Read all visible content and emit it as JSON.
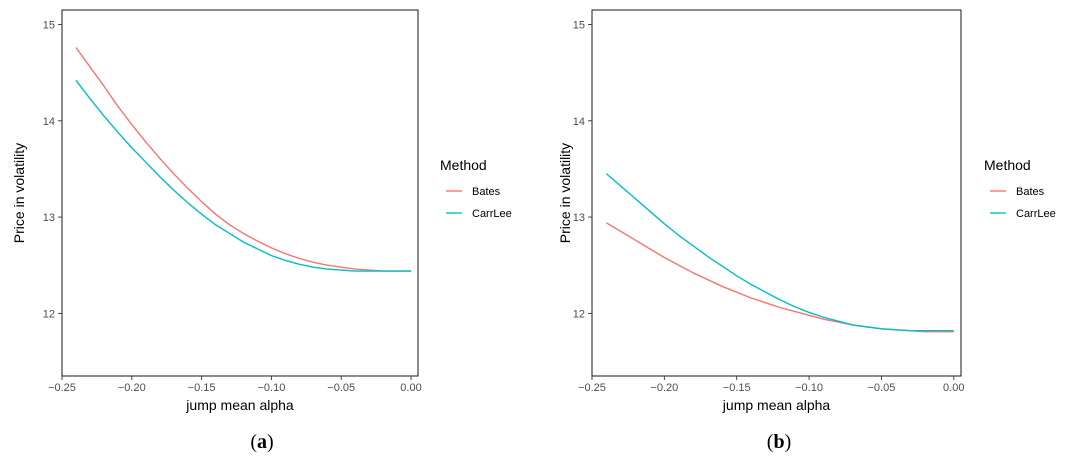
{
  "chart_data": [
    {
      "type": "line",
      "caption_open": "(",
      "caption_letter": "a",
      "caption_close": ")",
      "xlabel": "jump mean alpha",
      "ylabel": "Price in volatility",
      "xlim": [
        -0.25,
        0.005
      ],
      "ylim": [
        11.35,
        15.15
      ],
      "x_ticks": [
        -0.25,
        -0.2,
        -0.15,
        -0.1,
        -0.05,
        0.0
      ],
      "x_tick_labels": [
        "−0.25",
        "−0.20",
        "−0.15",
        "−0.10",
        "−0.05",
        "0.00"
      ],
      "y_ticks": [
        12,
        13,
        14,
        15
      ],
      "y_tick_labels": [
        "12",
        "13",
        "14",
        "15"
      ],
      "grid": false,
      "legend": {
        "title": "Method",
        "placement": "right"
      },
      "x": [
        -0.24,
        -0.23,
        -0.22,
        -0.21,
        -0.2,
        -0.19,
        -0.18,
        -0.17,
        -0.16,
        -0.15,
        -0.14,
        -0.13,
        -0.12,
        -0.11,
        -0.1,
        -0.09,
        -0.08,
        -0.07,
        -0.06,
        -0.05,
        -0.04,
        -0.03,
        -0.02,
        -0.01,
        0.0
      ],
      "series": [
        {
          "name": "Bates",
          "color": "#F8766D",
          "values": [
            14.76,
            14.56,
            14.36,
            14.15,
            13.96,
            13.78,
            13.61,
            13.45,
            13.3,
            13.16,
            13.03,
            12.92,
            12.83,
            12.75,
            12.68,
            12.62,
            12.57,
            12.53,
            12.5,
            12.48,
            12.46,
            12.45,
            12.44,
            12.44,
            12.44
          ]
        },
        {
          "name": "CarrLee",
          "color": "#00BFC4",
          "values": [
            14.42,
            14.23,
            14.05,
            13.88,
            13.72,
            13.57,
            13.42,
            13.28,
            13.15,
            13.03,
            12.92,
            12.83,
            12.74,
            12.67,
            12.6,
            12.55,
            12.51,
            12.48,
            12.46,
            12.45,
            12.44,
            12.44,
            12.44,
            12.44,
            12.44
          ]
        }
      ]
    },
    {
      "type": "line",
      "caption_open": "(",
      "caption_letter": "b",
      "caption_close": ")",
      "xlabel": "jump mean alpha",
      "ylabel": "Price in volatility",
      "xlim": [
        -0.25,
        0.005
      ],
      "ylim": [
        11.35,
        15.15
      ],
      "x_ticks": [
        -0.25,
        -0.2,
        -0.15,
        -0.1,
        -0.05,
        0.0
      ],
      "x_tick_labels": [
        "−0.25",
        "−0.20",
        "−0.15",
        "−0.10",
        "−0.05",
        "0.00"
      ],
      "y_ticks": [
        12,
        13,
        14,
        15
      ],
      "y_tick_labels": [
        "12",
        "13",
        "14",
        "15"
      ],
      "grid": false,
      "legend": {
        "title": "Method",
        "placement": "right"
      },
      "x": [
        -0.24,
        -0.23,
        -0.22,
        -0.21,
        -0.2,
        -0.19,
        -0.18,
        -0.17,
        -0.16,
        -0.15,
        -0.14,
        -0.13,
        -0.12,
        -0.11,
        -0.1,
        -0.09,
        -0.08,
        -0.07,
        -0.06,
        -0.05,
        -0.04,
        -0.03,
        -0.02,
        -0.01,
        0.0
      ],
      "series": [
        {
          "name": "Bates",
          "color": "#F8766D",
          "values": [
            12.94,
            12.85,
            12.76,
            12.67,
            12.58,
            12.5,
            12.42,
            12.35,
            12.28,
            12.22,
            12.16,
            12.11,
            12.06,
            12.02,
            11.98,
            11.94,
            11.91,
            11.88,
            11.86,
            11.84,
            11.83,
            11.82,
            11.81,
            11.81,
            11.81
          ]
        },
        {
          "name": "CarrLee",
          "color": "#00BFC4",
          "values": [
            13.45,
            13.32,
            13.19,
            13.06,
            12.93,
            12.81,
            12.7,
            12.59,
            12.49,
            12.39,
            12.3,
            12.22,
            12.14,
            12.07,
            12.01,
            11.96,
            11.92,
            11.88,
            11.86,
            11.84,
            11.83,
            11.82,
            11.82,
            11.82,
            11.82
          ]
        }
      ]
    }
  ]
}
